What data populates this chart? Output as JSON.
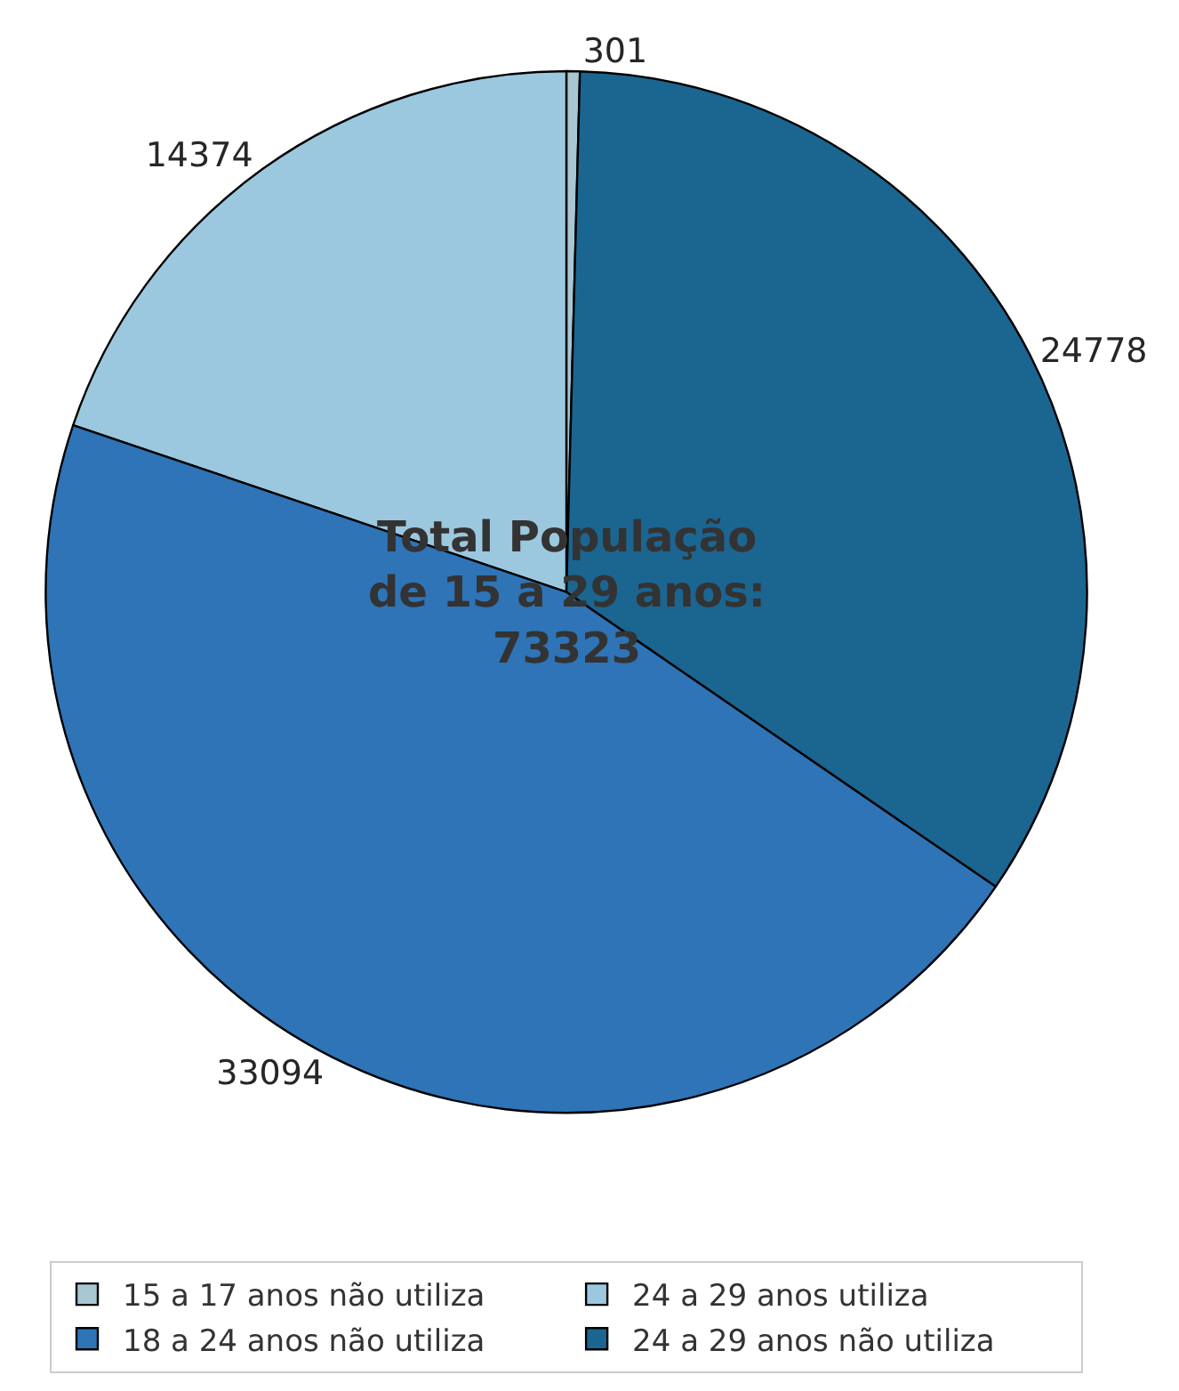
{
  "chart_data": {
    "type": "pie",
    "categories": [
      "15 a 17 anos não utiliza",
      "24 a 29 anos utiliza",
      "18 a 24 anos não utiliza",
      "24 a 29 anos não utiliza"
    ],
    "values": [
      301,
      14374,
      33094,
      24778
    ],
    "colors": [
      "#a9c6d3",
      "#9bc8de",
      "#2e74b7",
      "#1b6591"
    ],
    "data_labels": true,
    "annotations": [
      "Total População\nde 15 a 29 anos:\n73323"
    ],
    "legend": "bottom"
  }
}
